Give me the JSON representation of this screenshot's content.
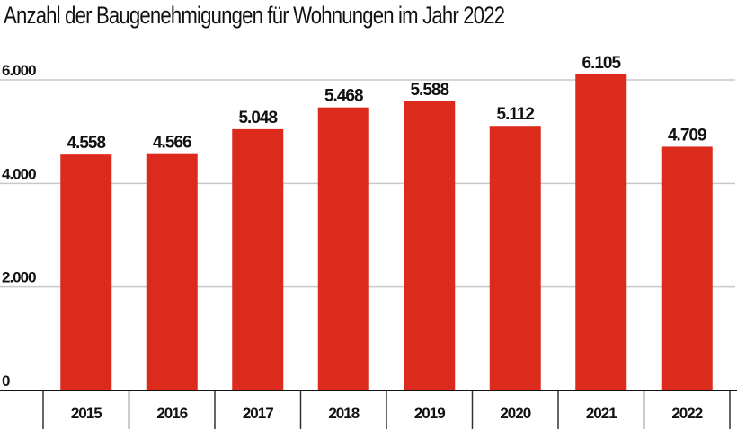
{
  "chart_data": {
    "type": "bar",
    "title": "Anzahl der Baugenehmigungen für Wohnungen im Jahr 2022",
    "xlabel": "",
    "ylabel": "",
    "categories": [
      "2015",
      "2016",
      "2017",
      "2018",
      "2019",
      "2020",
      "2021",
      "2022"
    ],
    "values": [
      4558,
      4566,
      5048,
      5468,
      5588,
      5112,
      6105,
      4709
    ],
    "data_labels": [
      "4.558",
      "4.566",
      "5.048",
      "5.468",
      "5.588",
      "5.112",
      "6.105",
      "4.709"
    ],
    "ylim": [
      0,
      6000
    ],
    "yticks": [
      0,
      2000,
      4000,
      6000
    ],
    "ytick_labels": [
      "0",
      "2.000",
      "4.000",
      "6.000"
    ],
    "grid": true,
    "bar_color": "#dc2a1d"
  }
}
